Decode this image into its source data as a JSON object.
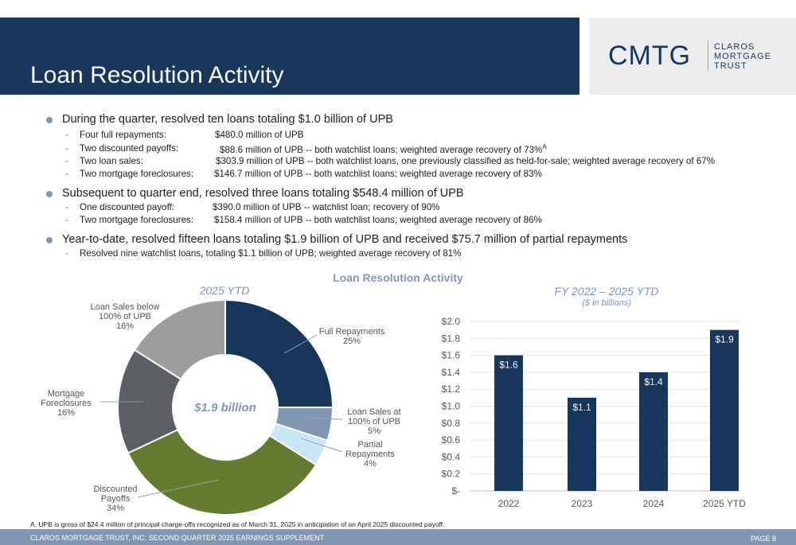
{
  "header": {
    "title": "Loan Resolution Activity",
    "logo": {
      "mark": "CMTG",
      "line1": "CLAROS",
      "line2": "MORTGAGE",
      "line3": "TRUST"
    }
  },
  "bullets": [
    {
      "text": "During the quarter, resolved ten loans totaling $1.0 billion of UPB",
      "subs": [
        {
          "label": "Four full repayments:",
          "value": "$480.0 million of UPB"
        },
        {
          "label": "Two discounted payoffs:",
          "value": "$88.6 million of UPB -- both watchlist loans; weighted average recovery of 73%",
          "sup": "A"
        },
        {
          "label": "Two loan sales:",
          "value": "$303.9 million of UPB -- both watchlist loans, one previously classified as held-for-sale; weighted average recovery of 67%"
        },
        {
          "label": "Two mortgage foreclosures:",
          "value": "$146.7 million of UPB -- both watchlist loans; weighted average recovery of 83%"
        }
      ]
    },
    {
      "text": "Subsequent to quarter end, resolved three loans totaling $548.4 million of UPB",
      "subs": [
        {
          "label": "One discounted payoff:",
          "value": "$390.0 million of UPB -- watchlist loan; recovery of 90%"
        },
        {
          "label": "Two mortgage foreclosures:",
          "value": "$158.4 million of UPB -- both watchlist loans; weighted average recovery of 86%"
        }
      ]
    },
    {
      "text": "Year-to-date, resolved fifteen loans totaling $1.9 billion of UPB and received $75.7 million of partial repayments",
      "subs": [
        {
          "label": "Resolved nine watchlist loans, totaling $1.1 billion of UPB; weighted average recovery of 81%"
        }
      ]
    }
  ],
  "section_title": "Loan Resolution Activity",
  "chart_data": [
    {
      "type": "pie",
      "title": "2025 YTD",
      "center_label": "$1.9 billion",
      "categories": [
        "Full Repayments",
        "Loan Sales at 100% of UPB",
        "Partial Repayments",
        "Discounted Payoffs",
        "Mortgage Foreclosures",
        "Loan Sales below 100% of UPB"
      ],
      "values": [
        25,
        5,
        4,
        34,
        16,
        16
      ],
      "value_labels": [
        "25%",
        "5%",
        "4%",
        "34%",
        "16%",
        "16%"
      ],
      "colors": [
        "#16365c",
        "#7f97b2",
        "#c8e6f5",
        "#627b2f",
        "#5b5e62",
        "#9d9d9d"
      ],
      "label_lines": [
        [
          "Full Repayments",
          "25%"
        ],
        [
          "Loan Sales at",
          "100% of UPB",
          "5%"
        ],
        [
          "Partial",
          "Repayments",
          "4%"
        ],
        [
          "Discounted",
          "Payoffs",
          "34%"
        ],
        [
          "Mortgage",
          "Foreclosures",
          "16%"
        ],
        [
          "Loan Sales below",
          "100% of UPB",
          "16%"
        ]
      ]
    },
    {
      "type": "bar",
      "title": "FY 2022 – 2025 YTD",
      "subtitle": "($ in billions)",
      "categories": [
        "2022",
        "2023",
        "2024",
        "2025 YTD"
      ],
      "values": [
        1.6,
        1.1,
        1.4,
        1.9
      ],
      "data_labels": [
        "$1.6",
        "$1.1",
        "$1.4",
        "$1.9"
      ],
      "ylim": [
        0,
        2.0
      ],
      "yticks": [
        0,
        0.2,
        0.4,
        0.6,
        0.8,
        1.0,
        1.2,
        1.4,
        1.6,
        1.8,
        2.0
      ],
      "ytick_labels": [
        "$-",
        "$0.2",
        "$0.4",
        "$0.6",
        "$0.8",
        "$1.0",
        "$1.2",
        "$1.4",
        "$1.6",
        "$1.8",
        "$2.0"
      ],
      "color": "#16365c",
      "grid": true
    }
  ],
  "footnote": "A. UPB is gross of $24.4 million of principal charge-offs recognized as of March 31, 2025 in anticipation of an April 2025 discounted payoff.",
  "footer": {
    "left": "CLAROS MORTGAGE TRUST, INC. SECOND QUARTER 2025 EARNINGS SUPPLEMENT",
    "right": "PAGE 8"
  }
}
